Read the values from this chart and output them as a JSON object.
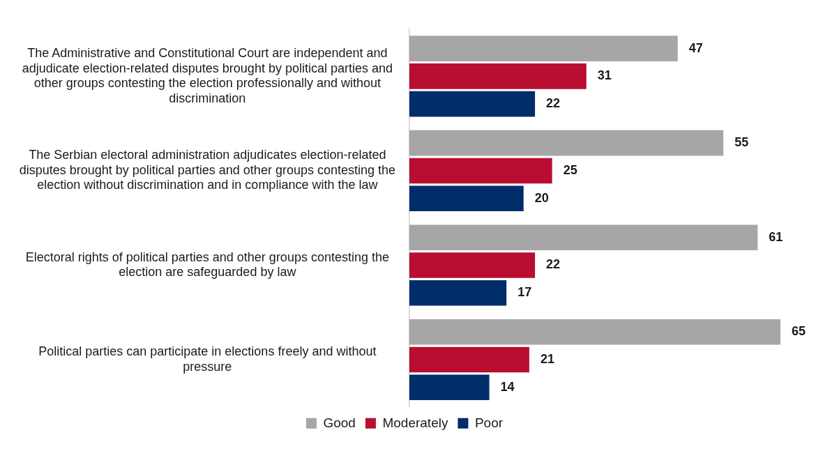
{
  "chart_data": {
    "type": "bar",
    "orientation": "horizontal",
    "data_labels": true,
    "grid": false,
    "legend": "bottom",
    "categories": [
      "The Administrative and Constitutional Court are independent and adjudicate election-related disputes brought by political parties and other groups contesting the election professionally and without discrimination",
      "The Serbian electoral administration adjudicates election-related disputes brought by political parties and other groups contesting the election without discrimination and in compliance with the law",
      "Electoral rights of political parties and other groups contesting the election are safeguarded by law",
      "Political parties can participate in elections freely and without pressure"
    ],
    "series": [
      {
        "name": "Good",
        "color": "#a6a6a6",
        "values": [
          47,
          55,
          61,
          65
        ]
      },
      {
        "name": "Moderately",
        "color": "#b90e31",
        "values": [
          31,
          25,
          22,
          21
        ]
      },
      {
        "name": "Poor",
        "color": "#002d6a",
        "values": [
          22,
          20,
          17,
          14
        ]
      }
    ]
  }
}
